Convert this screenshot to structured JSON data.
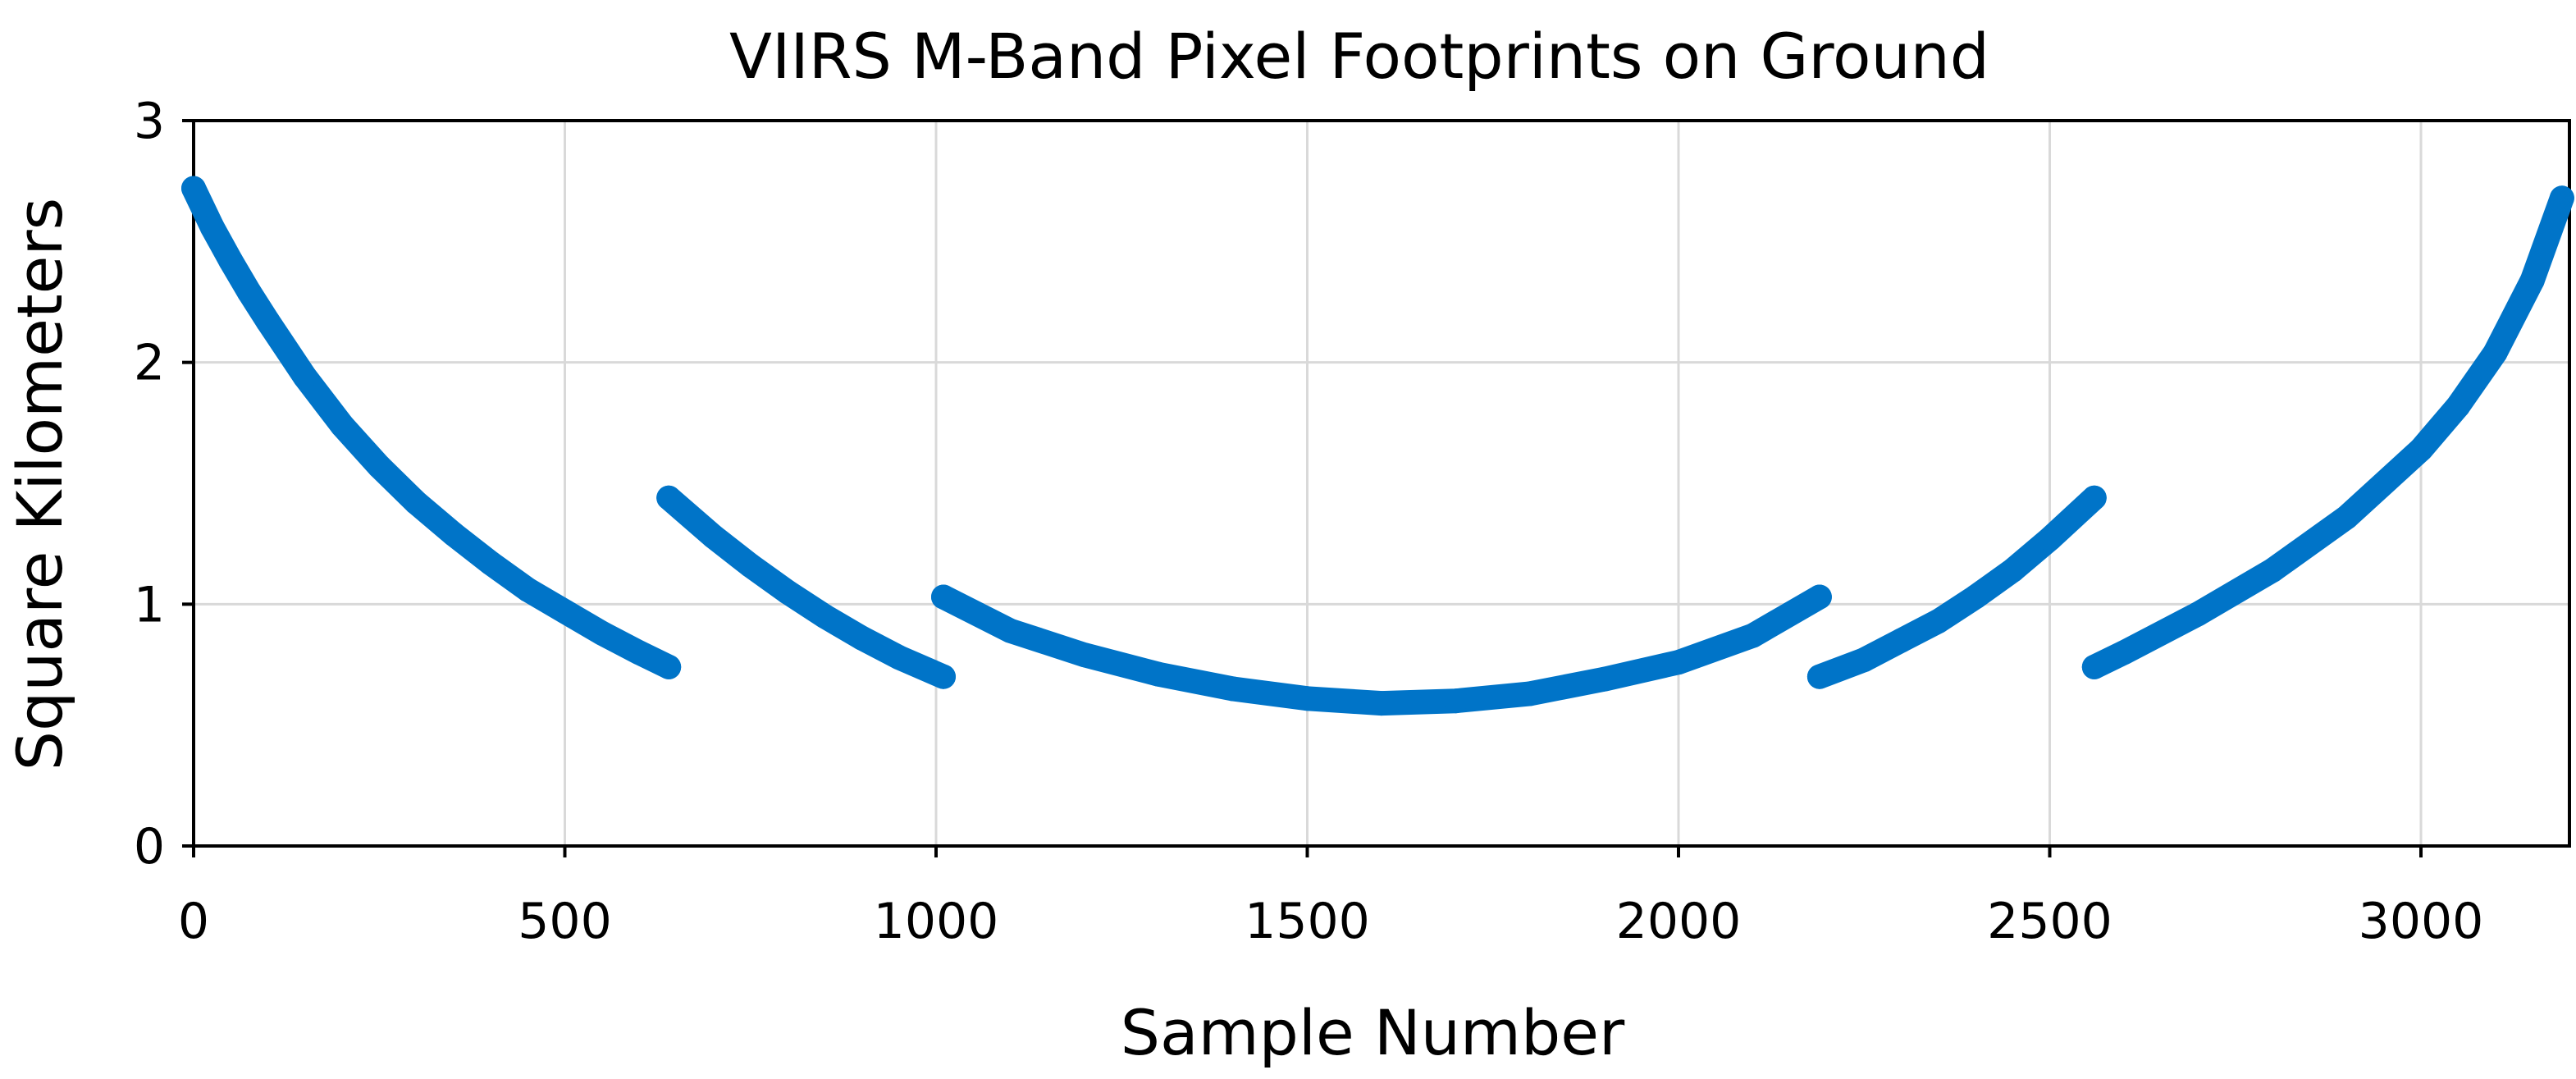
{
  "chart_data": {
    "type": "scatter",
    "title": "VIIRS M-Band Pixel Footprints on Ground",
    "xlabel": "Sample Number",
    "ylabel": "Square Kilometers",
    "xlim": [
      0,
      3200
    ],
    "ylim": [
      0,
      3
    ],
    "xticks": [
      "0",
      "500",
      "1000",
      "1500",
      "2000",
      "2500",
      "3000"
    ],
    "yticks": [
      "0",
      "1",
      "2",
      "3"
    ],
    "grid": true,
    "legend": "none",
    "colors": {
      "series": "#0074c8",
      "grid": "#d9d9d9",
      "axis": "#000000"
    },
    "series": [
      {
        "segments": [
          {
            "x": [
              0,
              25,
              50,
              75,
              100,
              150,
              200,
              250,
              300,
              350,
              400,
              450,
              500,
              550,
              600,
              640
            ],
            "y": [
              2.72,
              2.56,
              2.42,
              2.29,
              2.17,
              1.94,
              1.74,
              1.57,
              1.42,
              1.29,
              1.17,
              1.06,
              0.97,
              0.88,
              0.8,
              0.74
            ]
          },
          {
            "x": [
              640,
              700,
              750,
              800,
              850,
              900,
              950,
              1010
            ],
            "y": [
              1.44,
              1.28,
              1.16,
              1.05,
              0.95,
              0.86,
              0.78,
              0.7
            ]
          },
          {
            "x": [
              1010,
              1100,
              1200,
              1300,
              1400,
              1500,
              1600,
              1700,
              1800,
              1900,
              2000,
              2100,
              2190
            ],
            "y": [
              1.03,
              0.89,
              0.79,
              0.71,
              0.65,
              0.61,
              0.59,
              0.6,
              0.63,
              0.69,
              0.76,
              0.87,
              1.03
            ]
          },
          {
            "x": [
              2190,
              2250,
              2300,
              2350,
              2400,
              2450,
              2500,
              2560
            ],
            "y": [
              0.7,
              0.77,
              0.85,
              0.93,
              1.03,
              1.14,
              1.27,
              1.44
            ]
          },
          {
            "x": [
              2560,
              2600,
              2700,
              2800,
              2900,
              3000,
              3050,
              3100,
              3150,
              3190
            ],
            "y": [
              0.74,
              0.8,
              0.96,
              1.14,
              1.36,
              1.64,
              1.82,
              2.04,
              2.34,
              2.68
            ]
          }
        ]
      }
    ]
  }
}
